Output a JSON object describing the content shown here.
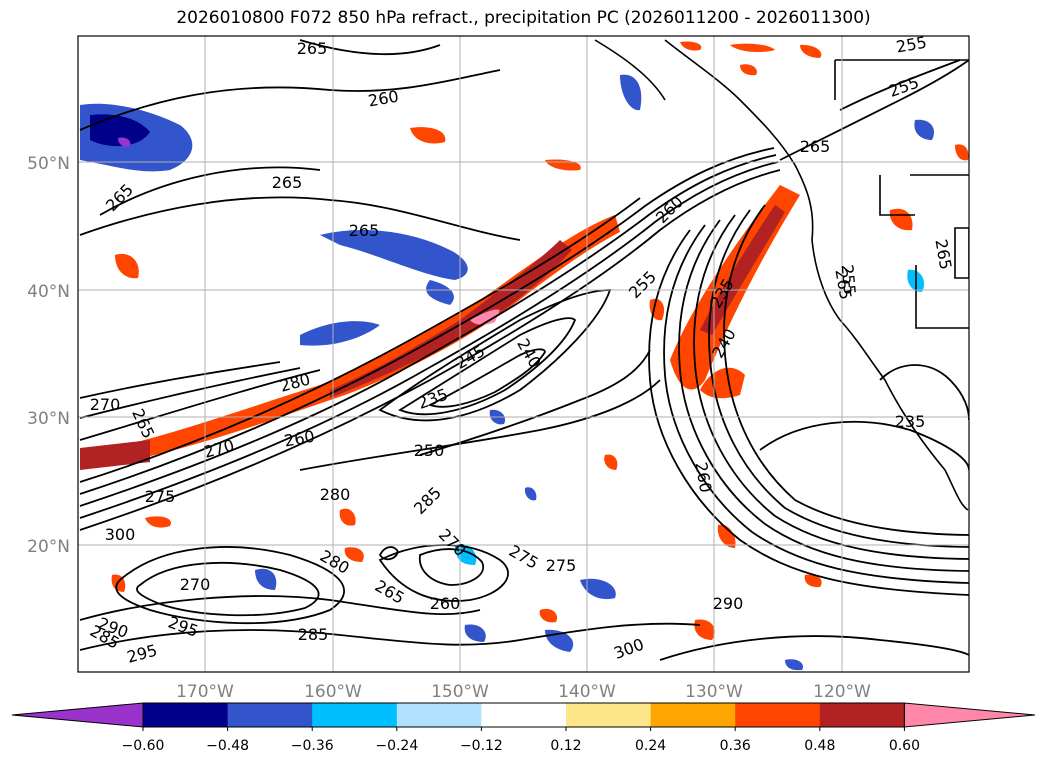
{
  "title": "2026010800 F072 850 hPa refract., precipitation PC (2026011200 - 2026011300)",
  "map": {
    "lat_labels": [
      "50°N",
      "40°N",
      "30°N",
      "20°N"
    ],
    "lon_labels": [
      "170°W",
      "160°W",
      "150°W",
      "140°W",
      "130°W",
      "120°W"
    ],
    "contour_labels": [
      "265",
      "260",
      "265",
      "265",
      "265",
      "260",
      "255",
      "255",
      "265",
      "265",
      "265",
      "255",
      "280",
      "270",
      "265",
      "270",
      "260",
      "235",
      "245",
      "240",
      "250",
      "275",
      "280",
      "285",
      "300",
      "280",
      "270",
      "265",
      "260",
      "275",
      "275",
      "270",
      "290",
      "300",
      "295",
      "285",
      "290",
      "285",
      "295",
      "260",
      "240",
      "235",
      "235",
      "255"
    ]
  },
  "colorbar": {
    "ticks": [
      "−0.60",
      "−0.48",
      "−0.36",
      "−0.24",
      "−0.12",
      "0.12",
      "0.24",
      "0.36",
      "0.48",
      "0.60"
    ],
    "colors": [
      "#9933cc",
      "#00008b",
      "#3355cc",
      "#00bfff",
      "#b0e2ff",
      "#ffffff",
      "#fde68a",
      "#ffa500",
      "#ff4500",
      "#b22222",
      "#ff88aa"
    ]
  }
}
